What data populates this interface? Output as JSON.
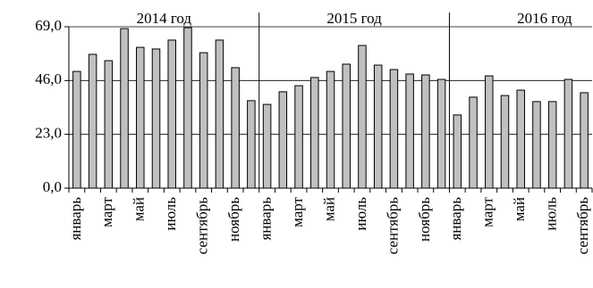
{
  "chart_data": {
    "type": "bar",
    "annotations": [
      "2014 год",
      "2015 год",
      "2016 год"
    ],
    "categories": [
      "январь",
      null,
      "март",
      null,
      "май",
      null,
      "июль",
      null,
      "сентябрь",
      null,
      "ноябрь",
      null,
      "январь",
      null,
      "март",
      null,
      "май",
      null,
      "июль",
      null,
      "сентябрь",
      null,
      "ноябрь",
      null,
      "январь",
      null,
      "март",
      null,
      "май",
      null,
      "июль",
      null,
      "сентябрь"
    ],
    "values": [
      49.9,
      57.2,
      54.5,
      68.2,
      60.2,
      59.5,
      63.3,
      68.6,
      57.9,
      63.3,
      51.5,
      37.4,
      35.8,
      41.2,
      43.8,
      47.3,
      49.9,
      53.0,
      61.0,
      52.6,
      50.7,
      48.8,
      48.4,
      46.5,
      31.3,
      38.9,
      48.0,
      39.6,
      41.9,
      37.0,
      37.0,
      46.5,
      40.8
    ],
    "color": "#c0c0c0",
    "ylim": [
      0,
      69
    ],
    "yticks": [
      {
        "value": 0,
        "label": "0,0"
      },
      {
        "value": 23,
        "label": "23,0"
      },
      {
        "value": 46,
        "label": "46,0"
      },
      {
        "value": 69,
        "label": "69,0"
      }
    ],
    "grid": true
  }
}
